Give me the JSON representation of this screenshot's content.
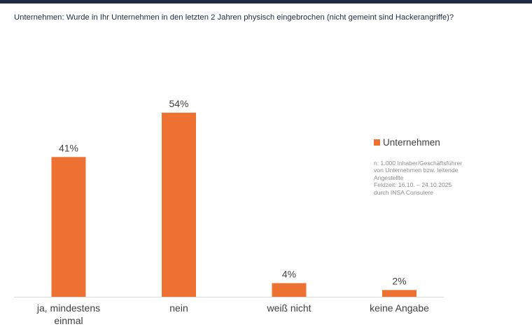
{
  "title": "Unternehmen: Wurde in Ihr Unternehmen in den letzten 2 Jahren physisch eingebrochen (nicht gemeint sind Hackerangriffe)?",
  "legend": {
    "label": "Unternehmen"
  },
  "source_note": [
    "n: 1.000 Inhaber/Geschäftsführer",
    "von Unternehmen bzw. leitende",
    "Angestellte",
    "Feldzeit: 16.10. – 24.10.2025",
    "durch INSA Consulere"
  ],
  "colors": {
    "bar": "#ed7232",
    "header": "#1f2a44",
    "axis": "#d9d9d9"
  },
  "chart_data": {
    "type": "bar",
    "title": "Unternehmen: Wurde in Ihr Unternehmen in den letzten 2 Jahren physisch eingebrochen (nicht gemeint sind Hackerangriffe)?",
    "categories": [
      [
        "ja, mindestens",
        "einmal"
      ],
      [
        "nein"
      ],
      [
        "weiß nicht"
      ],
      [
        "keine Angabe"
      ]
    ],
    "series": [
      {
        "name": "Unternehmen",
        "values": [
          41,
          54,
          4,
          2
        ],
        "labels": [
          "41%",
          "54%",
          "4%",
          "2%"
        ]
      }
    ],
    "ylim": [
      0,
      100
    ],
    "grid": false,
    "legend_position": "right"
  }
}
